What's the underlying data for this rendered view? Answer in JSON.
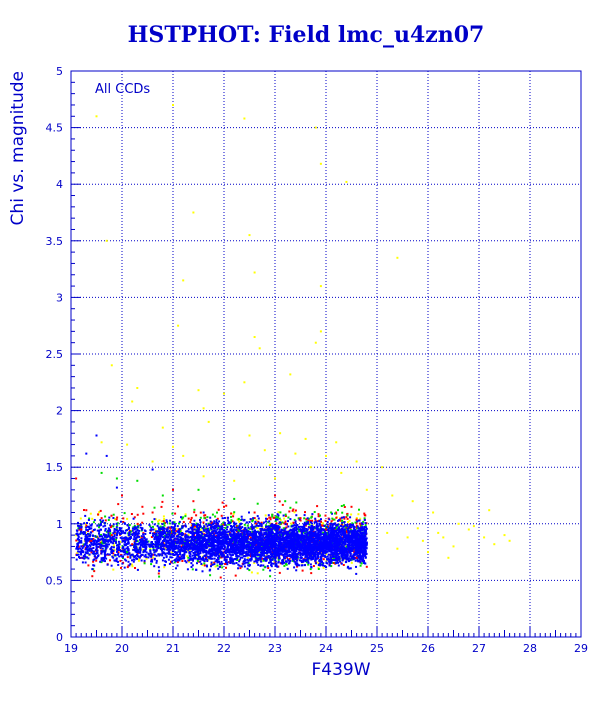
{
  "chart_data": {
    "type": "scatter",
    "title": "HSTPHOT: Field lmc_u4zn07",
    "xlabel": "F439W",
    "ylabel": "Chi vs. magnitude",
    "annotation": "All CCDs",
    "xlim": [
      19,
      29
    ],
    "ylim": [
      0,
      5
    ],
    "xticks": [
      "19",
      "20",
      "21",
      "22",
      "23",
      "24",
      "25",
      "26",
      "27",
      "28",
      "29"
    ],
    "yticks": [
      "0",
      "0.5",
      "1",
      "1.5",
      "2",
      "2.5",
      "3",
      "3.5",
      "4",
      "4.5",
      "5"
    ],
    "grid": true,
    "legend": "none",
    "colors": {
      "axis": "#0000c8",
      "grid": "#0000c8",
      "yellow": "#ffff00",
      "red": "#ff0000",
      "green": "#00dd00",
      "blue": "#0000ff"
    },
    "series": [
      {
        "color": "yellow",
        "points": [
          [
            19.5,
            4.6
          ],
          [
            21.0,
            4.7
          ],
          [
            22.4,
            4.58
          ],
          [
            23.8,
            4.5
          ],
          [
            23.9,
            4.18
          ],
          [
            24.4,
            4.02
          ],
          [
            21.4,
            3.75
          ],
          [
            19.7,
            3.5
          ],
          [
            22.5,
            3.55
          ],
          [
            25.4,
            3.35
          ],
          [
            21.2,
            3.15
          ],
          [
            22.6,
            3.22
          ],
          [
            23.9,
            3.1
          ],
          [
            21.1,
            2.75
          ],
          [
            22.6,
            2.65
          ],
          [
            23.9,
            2.7
          ],
          [
            22.7,
            2.55
          ],
          [
            19.8,
            2.4
          ],
          [
            20.3,
            2.2
          ],
          [
            21.5,
            2.18
          ],
          [
            22.0,
            2.15
          ],
          [
            22.4,
            2.25
          ],
          [
            23.3,
            2.32
          ],
          [
            23.8,
            2.6
          ],
          [
            20.2,
            2.08
          ],
          [
            21.6,
            2.02
          ],
          [
            20.8,
            1.85
          ],
          [
            21.7,
            1.9
          ],
          [
            22.5,
            1.78
          ],
          [
            23.1,
            1.8
          ],
          [
            23.6,
            1.75
          ],
          [
            24.2,
            1.72
          ],
          [
            20.1,
            1.7
          ],
          [
            21.0,
            1.68
          ],
          [
            22.8,
            1.65
          ],
          [
            23.4,
            1.62
          ],
          [
            24.0,
            1.6
          ],
          [
            24.6,
            1.55
          ],
          [
            25.1,
            1.5
          ],
          [
            19.6,
            1.72
          ],
          [
            20.6,
            1.55
          ],
          [
            21.2,
            1.6
          ],
          [
            22.9,
            1.52
          ],
          [
            23.7,
            1.5
          ],
          [
            24.3,
            1.45
          ],
          [
            25.3,
            1.25
          ],
          [
            25.7,
            1.2
          ],
          [
            26.1,
            1.1
          ],
          [
            26.6,
            1.0
          ],
          [
            25.2,
            0.92
          ],
          [
            25.6,
            0.88
          ],
          [
            25.9,
            0.85
          ],
          [
            26.2,
            0.92
          ],
          [
            26.5,
            0.8
          ],
          [
            26.8,
            0.95
          ],
          [
            27.1,
            0.88
          ],
          [
            27.3,
            0.82
          ],
          [
            27.5,
            0.9
          ],
          [
            26.0,
            0.75
          ],
          [
            26.4,
            0.7
          ],
          [
            25.4,
            0.78
          ],
          [
            27.6,
            0.85
          ],
          [
            27.2,
            1.12
          ],
          [
            26.9,
            0.98
          ],
          [
            25.8,
            0.96
          ],
          [
            26.3,
            0.88
          ],
          [
            23.0,
            1.4
          ],
          [
            22.2,
            1.38
          ],
          [
            24.8,
            1.3
          ],
          [
            21.6,
            1.42
          ]
        ]
      },
      {
        "color": "red",
        "points": [
          [
            19.1,
            1.4
          ],
          [
            19.3,
            1.12
          ],
          [
            19.2,
            0.95
          ],
          [
            19.6,
            1.05
          ],
          [
            20.0,
            1.25
          ],
          [
            20.4,
            1.15
          ],
          [
            19.8,
            0.9
          ],
          [
            20.6,
            1.1
          ],
          [
            21.0,
            1.3
          ],
          [
            21.4,
            1.2
          ],
          [
            22.0,
            1.15
          ],
          [
            22.6,
            1.1
          ],
          [
            23.0,
            1.25
          ],
          [
            23.5,
            1.05
          ],
          [
            24.0,
            0.95
          ],
          [
            24.6,
            0.7
          ],
          [
            24.8,
            0.62
          ],
          [
            24.5,
            1.15
          ],
          [
            19.4,
            0.85
          ],
          [
            20.2,
            0.82
          ]
        ]
      },
      {
        "color": "green",
        "points": [
          [
            19.6,
            1.45
          ],
          [
            19.9,
            1.4
          ],
          [
            20.3,
            1.38
          ],
          [
            20.8,
            1.25
          ],
          [
            21.5,
            1.3
          ],
          [
            22.2,
            1.22
          ],
          [
            23.2,
            1.2
          ],
          [
            24.1,
            1.1
          ],
          [
            24.7,
            0.65
          ],
          [
            20.1,
            0.75
          ],
          [
            21.3,
            0.7
          ],
          [
            22.8,
            0.62
          ],
          [
            23.7,
            0.6
          ]
        ]
      },
      {
        "color": "blue",
        "points": [
          [
            19.3,
            1.62
          ],
          [
            19.5,
            1.78
          ],
          [
            19.7,
            1.6
          ],
          [
            20.6,
            1.48
          ],
          [
            19.9,
            1.32
          ],
          [
            21.6,
            1.1
          ],
          [
            22.5,
            0.8
          ],
          [
            23.4,
            0.85
          ],
          [
            24.2,
            0.75
          ],
          [
            20.8,
            0.95
          ],
          [
            21.9,
            0.9
          ],
          [
            23.0,
            0.7
          ],
          [
            24.6,
            0.82
          ],
          [
            22.2,
            0.65
          ]
        ]
      }
    ],
    "dense_cloud": {
      "description": "Dense band of blue/green/red/yellow points",
      "x_range": [
        19.1,
        24.9
      ],
      "y_center": 0.85,
      "y_spread": 0.12,
      "core_x_range": [
        20.5,
        24.8
      ],
      "core_y_range": [
        0.62,
        1.05
      ],
      "counts": {
        "blue": 5500,
        "green": 700,
        "red": 700,
        "yellow": 450
      }
    }
  }
}
